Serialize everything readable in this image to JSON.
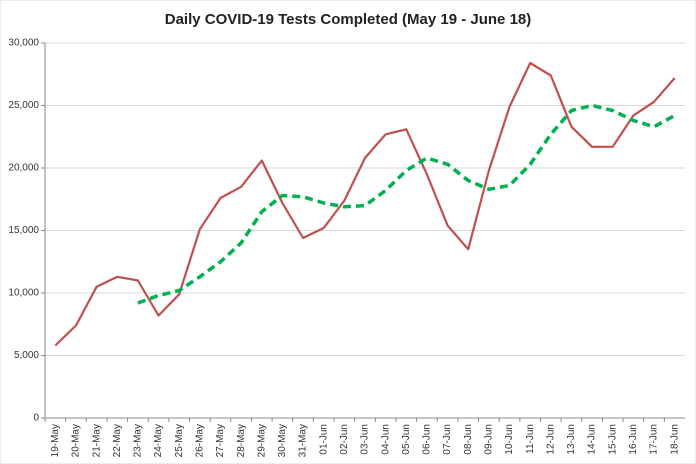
{
  "chart_data": {
    "type": "line",
    "title": "Daily COVID-19 Tests Completed (May 19 - June 18)",
    "categories": [
      "19-May",
      "20-May",
      "21-May",
      "22-May",
      "23-May",
      "24-May",
      "25-May",
      "26-May",
      "27-May",
      "28-May",
      "29-May",
      "30-May",
      "31-May",
      "01-Jun",
      "02-Jun",
      "03-Jun",
      "04-Jun",
      "05-Jun",
      "06-Jun",
      "07-Jun",
      "08-Jun",
      "09-Jun",
      "10-Jun",
      "11-Jun",
      "12-Jun",
      "13-Jun",
      "14-Jun",
      "15-Jun",
      "16-Jun",
      "17-Jun",
      "18-Jun"
    ],
    "series": [
      {
        "color": "#c0504d",
        "dashed": false,
        "values": [
          5800,
          7400,
          10500,
          11300,
          11000,
          8200,
          9900,
          15100,
          17600,
          18500,
          20600,
          17200,
          14400,
          15200,
          17400,
          20800,
          22700,
          23100,
          19500,
          15400,
          13500,
          19800,
          24900,
          28400,
          27400,
          23300,
          21700,
          21700,
          24200,
          25300,
          27200
        ]
      },
      {
        "color": "#00b050",
        "dashed": true,
        "values": [
          null,
          null,
          null,
          null,
          9200,
          9800,
          10200,
          11300,
          12500,
          14000,
          16500,
          17800,
          17700,
          17200,
          16900,
          17000,
          18200,
          19800,
          20800,
          20300,
          19000,
          18300,
          18600,
          20300,
          22700,
          24600,
          25000,
          24600,
          23800,
          23300,
          24200
        ]
      }
    ],
    "ylim": [
      0,
      30000
    ],
    "yticks": [
      0,
      {
        "value": 5000,
        "label": "5,000"
      },
      {
        "value": 10000,
        "label": "10,000"
      },
      {
        "value": 15000,
        "label": "15,000"
      },
      {
        "value": 20000,
        "label": "20,000"
      },
      {
        "value": 25000,
        "label": "25,000"
      },
      {
        "value": 30000,
        "label": "30,000"
      }
    ],
    "grid": true
  }
}
